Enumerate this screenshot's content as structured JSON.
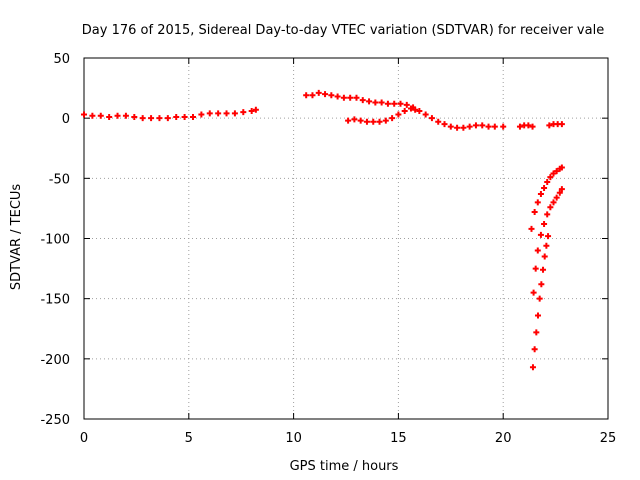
{
  "chart_data": {
    "type": "scatter",
    "title": "Day 176 of 2015, Sidereal Day-to-day VTEC variation (SDTVAR) for receiver vale",
    "xlabel": "GPS time / hours",
    "ylabel": "SDTVAR / TECUs",
    "xlim": [
      0,
      25
    ],
    "ylim": [
      -250,
      50
    ],
    "xticks": [
      0,
      5,
      10,
      15,
      20,
      25
    ],
    "yticks": [
      50,
      0,
      -50,
      -100,
      -150,
      -200,
      -250
    ],
    "xtick_labels": [
      "0",
      "5",
      "10",
      "15",
      "20",
      "25"
    ],
    "ytick_labels": [
      "50",
      "0",
      "-50",
      "-100",
      "-150",
      "-200",
      "-250"
    ],
    "grid": true,
    "marker": "plus",
    "color": "#ff0000",
    "series": [
      {
        "points": [
          [
            0.0,
            3
          ],
          [
            0.4,
            2
          ],
          [
            0.8,
            2
          ],
          [
            1.2,
            1
          ],
          [
            1.6,
            2
          ],
          [
            2.0,
            2
          ],
          [
            2.4,
            1
          ],
          [
            2.8,
            0
          ],
          [
            3.2,
            0
          ],
          [
            3.6,
            0
          ],
          [
            4.0,
            0
          ],
          [
            4.4,
            1
          ],
          [
            4.8,
            1
          ],
          [
            5.2,
            1
          ],
          [
            5.6,
            3
          ],
          [
            6.0,
            4
          ],
          [
            6.4,
            4
          ],
          [
            6.8,
            4
          ],
          [
            7.2,
            4
          ],
          [
            7.6,
            5
          ],
          [
            8.0,
            6
          ],
          [
            8.2,
            7
          ],
          [
            10.6,
            19
          ],
          [
            10.9,
            19
          ],
          [
            11.2,
            21
          ],
          [
            11.5,
            20
          ],
          [
            11.8,
            19
          ],
          [
            12.1,
            18
          ],
          [
            12.4,
            17
          ],
          [
            12.7,
            17
          ],
          [
            13.0,
            17
          ],
          [
            13.3,
            15
          ],
          [
            13.6,
            14
          ],
          [
            13.9,
            13
          ],
          [
            14.2,
            13
          ],
          [
            14.5,
            12
          ],
          [
            14.8,
            12
          ],
          [
            15.1,
            12
          ],
          [
            15.4,
            11
          ],
          [
            15.7,
            9
          ],
          [
            16.0,
            6
          ],
          [
            16.3,
            3
          ],
          [
            16.6,
            0
          ],
          [
            16.9,
            -3
          ],
          [
            17.2,
            -5
          ],
          [
            17.5,
            -7
          ],
          [
            17.8,
            -8
          ],
          [
            18.1,
            -8
          ],
          [
            18.4,
            -7
          ],
          [
            18.7,
            -6
          ],
          [
            19.0,
            -6
          ],
          [
            19.3,
            -7
          ],
          [
            19.6,
            -7
          ],
          [
            20.0,
            -7
          ],
          [
            12.6,
            -2
          ],
          [
            12.9,
            -1
          ],
          [
            13.2,
            -2
          ],
          [
            13.5,
            -3
          ],
          [
            13.8,
            -3
          ],
          [
            14.1,
            -3
          ],
          [
            14.4,
            -2
          ],
          [
            14.7,
            0
          ],
          [
            15.0,
            3
          ],
          [
            15.3,
            6
          ],
          [
            15.6,
            8
          ],
          [
            15.8,
            7
          ],
          [
            20.8,
            -7
          ],
          [
            21.0,
            -6
          ],
          [
            21.2,
            -6
          ],
          [
            21.4,
            -7
          ],
          [
            22.2,
            -6
          ],
          [
            22.4,
            -5
          ],
          [
            22.6,
            -5
          ],
          [
            22.8,
            -5
          ],
          [
            21.35,
            -92
          ],
          [
            21.5,
            -78
          ],
          [
            21.65,
            -70
          ],
          [
            21.8,
            -63
          ],
          [
            21.95,
            -58
          ],
          [
            22.1,
            -53
          ],
          [
            22.25,
            -49
          ],
          [
            22.4,
            -46
          ],
          [
            22.55,
            -44
          ],
          [
            22.7,
            -42
          ],
          [
            22.8,
            -41
          ],
          [
            21.45,
            -145
          ],
          [
            21.55,
            -125
          ],
          [
            21.65,
            -110
          ],
          [
            21.8,
            -97
          ],
          [
            21.95,
            -88
          ],
          [
            22.1,
            -80
          ],
          [
            22.25,
            -74
          ],
          [
            22.4,
            -70
          ],
          [
            22.55,
            -66
          ],
          [
            22.7,
            -62
          ],
          [
            22.8,
            -59
          ],
          [
            21.42,
            -207
          ],
          [
            21.5,
            -192
          ],
          [
            21.58,
            -178
          ],
          [
            21.66,
            -164
          ],
          [
            21.74,
            -150
          ],
          [
            21.82,
            -138
          ],
          [
            21.9,
            -126
          ],
          [
            21.98,
            -115
          ],
          [
            22.06,
            -106
          ],
          [
            22.14,
            -98
          ]
        ]
      }
    ]
  }
}
